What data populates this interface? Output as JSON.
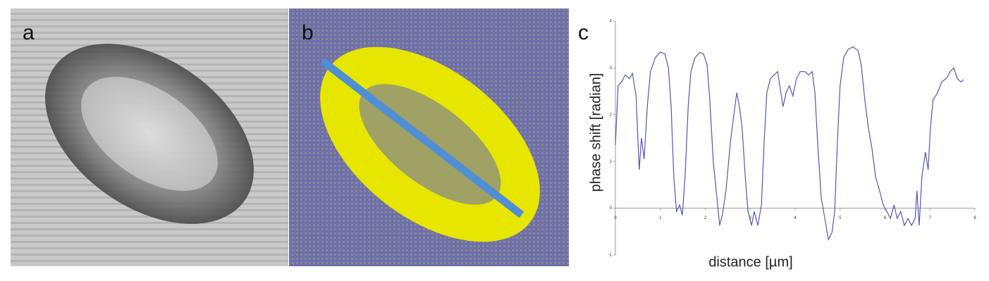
{
  "panel_labels": [
    "a",
    "b",
    "c"
  ],
  "chart_data": {
    "type": "line",
    "xlabel": "distance [µm]",
    "ylabel": "phase shift [radian]",
    "xlim": [
      0,
      8
    ],
    "xticks": [
      0,
      1,
      2,
      3,
      4,
      5,
      6,
      7,
      8
    ],
    "ylim": [
      -1,
      4
    ],
    "yticks": [
      4,
      3,
      2,
      1,
      0,
      -1
    ],
    "grid": false,
    "series": [
      {
        "color": "#5555bb",
        "x": [
          0,
          0.06,
          0.14,
          0.22,
          0.31,
          0.38,
          0.46,
          0.5,
          0.53,
          0.58,
          0.64,
          0.71,
          0.78,
          0.89,
          1.0,
          1.1,
          1.18,
          1.24,
          1.3,
          1.36,
          1.43,
          1.49,
          1.55,
          1.62,
          1.68,
          1.77,
          1.88,
          1.96,
          2.04,
          2.1,
          2.18,
          2.26,
          2.32,
          2.38,
          2.46,
          2.56,
          2.64,
          2.7,
          2.76,
          2.82,
          2.89,
          2.95,
          3.03,
          3.09,
          3.17,
          3.25,
          3.31,
          3.37,
          3.45,
          3.53,
          3.61,
          3.67,
          3.73,
          3.8,
          3.87,
          3.95,
          4.03,
          4.11,
          4.22,
          4.3,
          4.38,
          4.44,
          4.5,
          4.58,
          4.66,
          4.74,
          4.82,
          4.88,
          4.94,
          5.0,
          5.08,
          5.18,
          5.29,
          5.4,
          5.47,
          5.55,
          5.63,
          5.71,
          5.79,
          5.88,
          5.96,
          6.04,
          6.12,
          6.2,
          6.27,
          6.35,
          6.43,
          6.51,
          6.59,
          6.67,
          6.71,
          6.76,
          6.82,
          6.9,
          6.96,
          7.01,
          7.07,
          7.17,
          7.26,
          7.36,
          7.45,
          7.53,
          7.61,
          7.69,
          7.75
        ],
        "values": [
          1.35,
          2.62,
          2.7,
          2.85,
          2.77,
          2.88,
          2.4,
          1.5,
          0.82,
          1.5,
          1.05,
          2.17,
          2.92,
          3.22,
          3.34,
          3.3,
          3.0,
          2.17,
          0.67,
          -0.07,
          0.07,
          -0.15,
          0.67,
          2.17,
          2.92,
          3.22,
          3.33,
          3.3,
          3.07,
          2.32,
          0.97,
          0.22,
          -0.37,
          -0.15,
          0.37,
          1.42,
          2.02,
          2.47,
          2.17,
          1.72,
          0.67,
          -0.07,
          -0.37,
          -0.07,
          -0.37,
          0.07,
          1.42,
          2.47,
          2.77,
          2.85,
          2.92,
          2.55,
          2.17,
          2.47,
          2.62,
          2.4,
          2.77,
          2.92,
          2.92,
          2.85,
          2.92,
          2.47,
          1.42,
          0.22,
          -0.22,
          -0.67,
          -0.52,
          -0.07,
          1.42,
          2.62,
          3.22,
          3.4,
          3.45,
          3.37,
          3.07,
          2.32,
          1.72,
          1.27,
          0.67,
          0.37,
          0.07,
          -0.07,
          -0.22,
          0.07,
          -0.22,
          -0.07,
          -0.37,
          -0.22,
          -0.37,
          -0.22,
          0.37,
          -0.37,
          0.67,
          1.2,
          0.82,
          1.72,
          2.32,
          2.47,
          2.7,
          2.77,
          2.92,
          3.0,
          2.77,
          2.7,
          2.75
        ]
      }
    ]
  }
}
